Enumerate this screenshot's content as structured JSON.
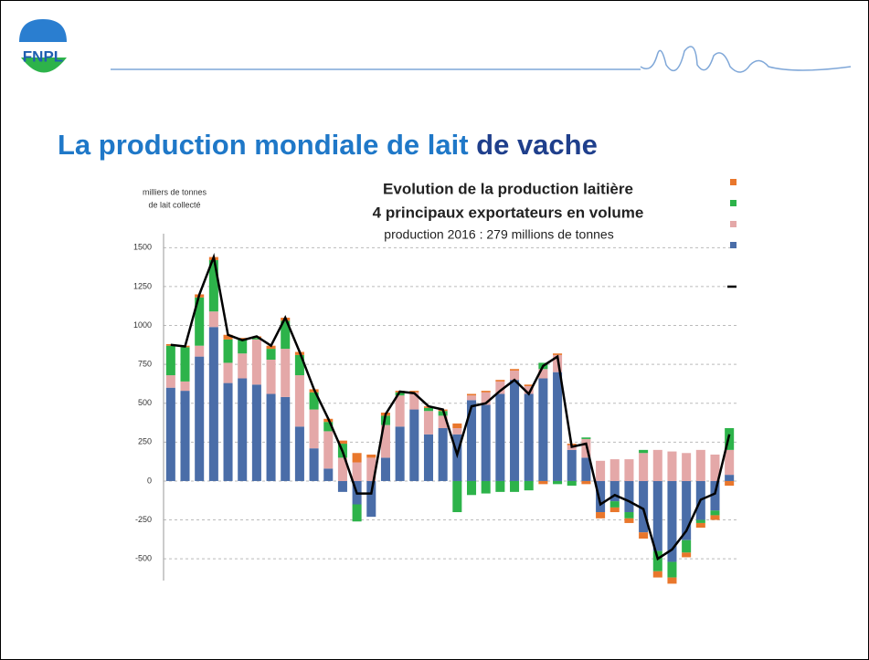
{
  "slide": {
    "logo": "FNPL",
    "title_part1": "La production mondiale de lait",
    "title_part2": "de vache"
  },
  "chart_data": {
    "type": "bar",
    "title_lines": [
      "Evolution de la production laitière",
      "4 principaux exportateurs en volume"
    ],
    "subtitle": "production 2016 :  279 millions de tonnes",
    "y_label_lines": [
      "milliers de tonnes",
      "de lait collecté"
    ],
    "ylim": [
      -640,
      1590
    ],
    "yticks": [
      1500,
      1250,
      1000,
      750,
      500,
      250,
      0,
      -250,
      -500
    ],
    "grid": true,
    "stacked": true,
    "series": [
      {
        "color": "#4a6da8",
        "values": [
          600,
          580,
          800,
          990,
          630,
          660,
          620,
          560,
          540,
          350,
          210,
          80,
          -70,
          -150,
          -230,
          150,
          350,
          460,
          300,
          340,
          300,
          520,
          490,
          560,
          650,
          560,
          660,
          700,
          200,
          150,
          -200,
          -130,
          -200,
          -330,
          -450,
          -520,
          -380,
          -250,
          -190,
          40
        ]
      },
      {
        "color": "#e4a8a8",
        "values": [
          80,
          60,
          70,
          100,
          130,
          160,
          290,
          220,
          310,
          330,
          250,
          240,
          150,
          120,
          150,
          210,
          200,
          110,
          150,
          80,
          40,
          30,
          80,
          80,
          60,
          50,
          60,
          110,
          30,
          120,
          130,
          140,
          140,
          180,
          200,
          190,
          180,
          200,
          170,
          160
        ]
      },
      {
        "color": "#2db34a",
        "values": [
          190,
          220,
          310,
          330,
          150,
          90,
          10,
          70,
          180,
          130,
          110,
          60,
          90,
          -110,
          0,
          60,
          20,
          0,
          20,
          30,
          -200,
          -90,
          -80,
          -70,
          -70,
          -60,
          40,
          -20,
          -30,
          10,
          0,
          -40,
          -40,
          20,
          -130,
          -100,
          -80,
          -20,
          -30,
          140
        ]
      },
      {
        "color": "#e9772c",
        "values": [
          10,
          10,
          20,
          20,
          30,
          10,
          10,
          20,
          20,
          20,
          20,
          20,
          20,
          60,
          20,
          20,
          10,
          10,
          10,
          10,
          30,
          10,
          10,
          10,
          10,
          10,
          -20,
          10,
          10,
          -20,
          -40,
          -30,
          -30,
          -40,
          -40,
          -40,
          -30,
          -30,
          -30,
          -30
        ]
      }
    ],
    "line": {
      "color": "#000000",
      "values": [
        875,
        865,
        1200,
        1440,
        940,
        905,
        930,
        870,
        1050,
        830,
        590,
        400,
        190,
        -80,
        -80,
        430,
        575,
        565,
        480,
        460,
        170,
        480,
        500,
        580,
        650,
        560,
        740,
        800,
        220,
        240,
        -150,
        -90,
        -130,
        -180,
        -500,
        -440,
        -320,
        -120,
        -80,
        300
      ]
    }
  }
}
